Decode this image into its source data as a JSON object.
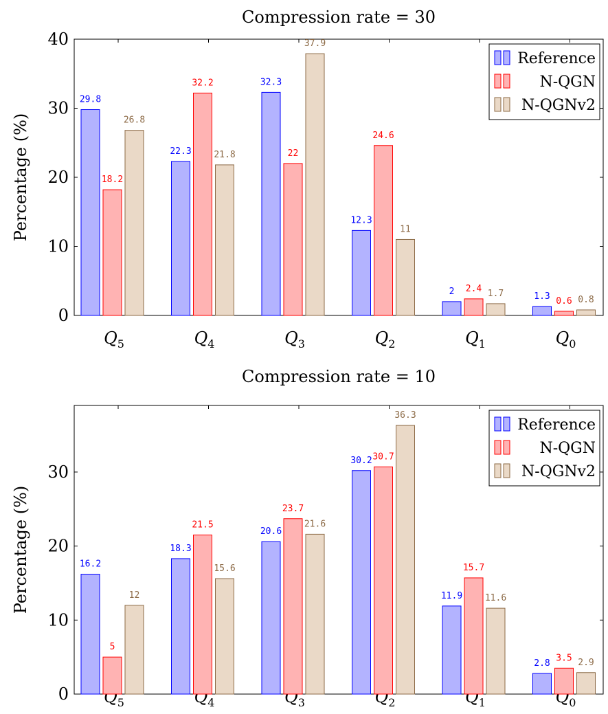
{
  "colors": {
    "Reference": {
      "fill": "#b3b3ff",
      "stroke": "#0000ff",
      "text": "#0000ff"
    },
    "N-QGN": {
      "fill": "#ffb3b3",
      "stroke": "#ff0000",
      "text": "#ff0000"
    },
    "N-QGNv2": {
      "fill": "#ead9c7",
      "stroke": "#8c6a46",
      "text": "#8c6a46"
    }
  },
  "chart_data": [
    {
      "type": "bar",
      "title": "Compression rate = 30",
      "ylabel": "Percentage (%)",
      "xlabel": "",
      "categories": [
        "Q5",
        "Q4",
        "Q3",
        "Q2",
        "Q1",
        "Q0"
      ],
      "category_labels": [
        {
          "main": "Q",
          "sub": "5"
        },
        {
          "main": "Q",
          "sub": "4"
        },
        {
          "main": "Q",
          "sub": "3"
        },
        {
          "main": "Q",
          "sub": "2"
        },
        {
          "main": "Q",
          "sub": "1"
        },
        {
          "main": "Q",
          "sub": "0"
        }
      ],
      "ylim": [
        0,
        40
      ],
      "yticks": [
        0,
        10,
        20,
        30,
        40
      ],
      "grid": false,
      "legend_position": "top-right",
      "series": [
        {
          "name": "Reference",
          "values": [
            29.8,
            22.3,
            32.3,
            12.3,
            2,
            1.3
          ],
          "labels": [
            "29.8",
            "22.3",
            "32.3",
            "12.3",
            "2",
            "1.3"
          ]
        },
        {
          "name": "N-QGN",
          "values": [
            18.2,
            32.2,
            22,
            24.6,
            2.4,
            0.6
          ],
          "labels": [
            "18.2",
            "32.2",
            "22",
            "24.6",
            "2.4",
            "0.6"
          ]
        },
        {
          "name": "N-QGNv2",
          "values": [
            26.8,
            21.8,
            37.9,
            11,
            1.7,
            0.8
          ],
          "labels": [
            "26.8",
            "21.8",
            "37.9",
            "11",
            "1.7",
            "0.8"
          ]
        }
      ]
    },
    {
      "type": "bar",
      "title": "Compression rate = 10",
      "ylabel": "Percentage (%)",
      "xlabel": "",
      "categories": [
        "Q5",
        "Q4",
        "Q3",
        "Q2",
        "Q1",
        "Q0"
      ],
      "category_labels": [
        {
          "main": "Q",
          "sub": "5"
        },
        {
          "main": "Q",
          "sub": "4"
        },
        {
          "main": "Q",
          "sub": "3"
        },
        {
          "main": "Q",
          "sub": "2"
        },
        {
          "main": "Q",
          "sub": "1"
        },
        {
          "main": "Q",
          "sub": "0"
        }
      ],
      "ylim": [
        0,
        39
      ],
      "yticks": [
        0,
        10,
        20,
        30
      ],
      "grid": false,
      "legend_position": "top-right",
      "series": [
        {
          "name": "Reference",
          "values": [
            16.2,
            18.3,
            20.6,
            30.2,
            11.9,
            2.8
          ],
          "labels": [
            "16.2",
            "18.3",
            "20.6",
            "30.2",
            "11.9",
            "2.8"
          ]
        },
        {
          "name": "N-QGN",
          "values": [
            5,
            21.5,
            23.7,
            30.7,
            15.7,
            3.5
          ],
          "labels": [
            "5",
            "21.5",
            "23.7",
            "30.7",
            "15.7",
            "3.5"
          ]
        },
        {
          "name": "N-QGNv2",
          "values": [
            12,
            15.6,
            21.6,
            36.3,
            11.6,
            2.9
          ],
          "labels": [
            "12",
            "15.6",
            "21.6",
            "36.3",
            "11.6",
            "2.9"
          ]
        }
      ]
    }
  ]
}
